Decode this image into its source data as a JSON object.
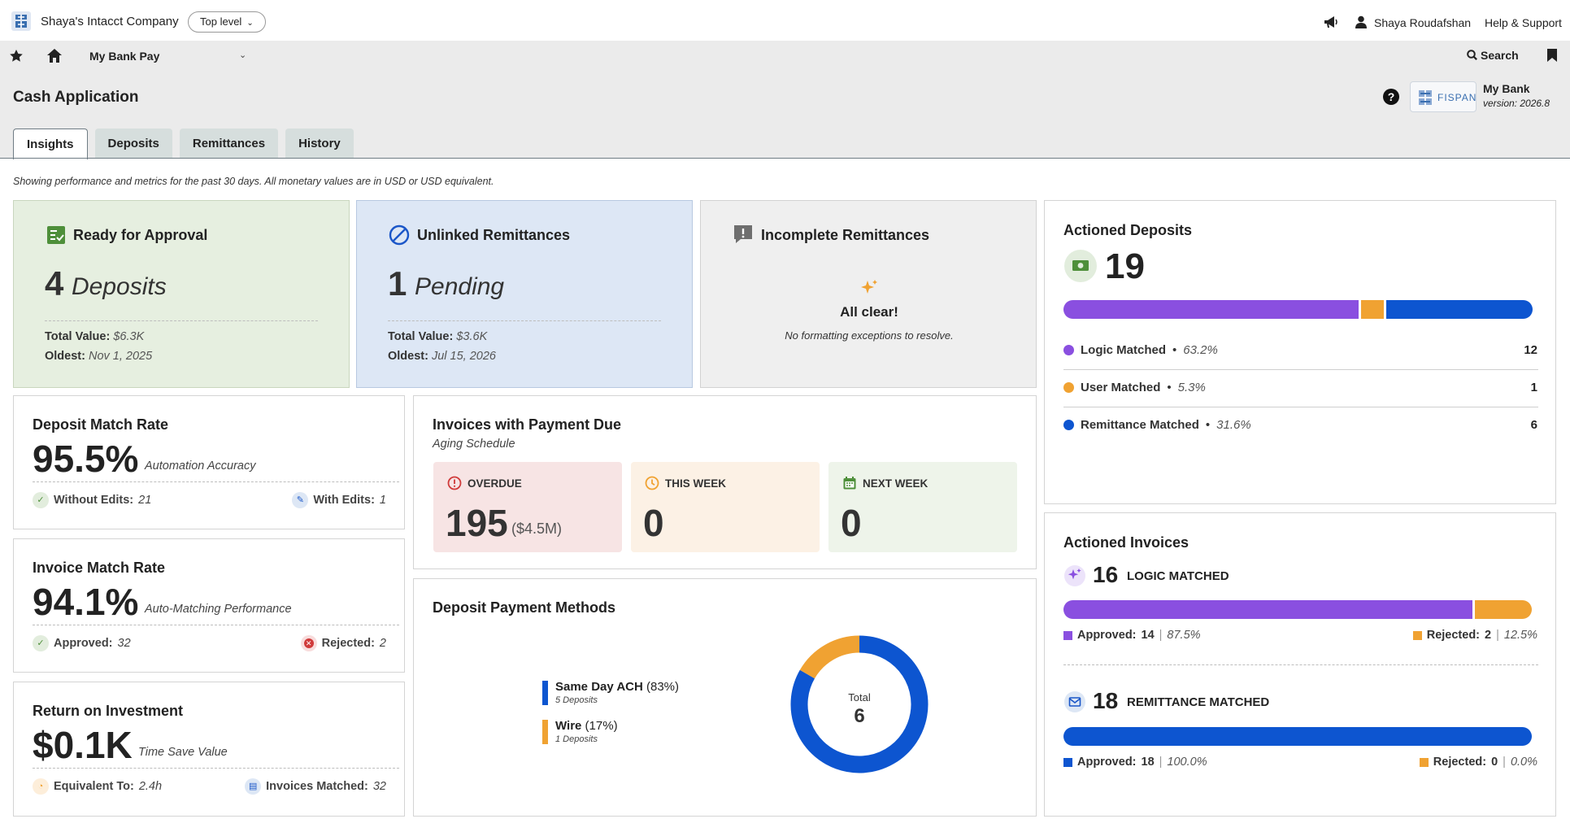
{
  "header": {
    "company": "Shaya's Intacct Company",
    "level": "Top level",
    "user": "Shaya Roudafshan",
    "help": "Help & Support"
  },
  "nav": {
    "title": "My Bank Pay",
    "search": "Search"
  },
  "page": {
    "title": "Cash Application",
    "bank_name": "My Bank",
    "version": "version: 2026.8",
    "logo_text": "FISPAN",
    "tabs": [
      "Insights",
      "Deposits",
      "Remittances",
      "History"
    ],
    "subtitle": "Showing performance and metrics for the past 30 days. All monetary values are in USD or USD equivalent."
  },
  "ready": {
    "title": "Ready for Approval",
    "count": "4",
    "unit": "Deposits",
    "total_label": "Total Value:",
    "total_value": "$6.3K",
    "oldest_label": "Oldest:",
    "oldest_value": "Nov 1, 2025"
  },
  "unlinked": {
    "title": "Unlinked Remittances",
    "count": "1",
    "unit": "Pending",
    "total_label": "Total Value:",
    "total_value": "$3.6K",
    "oldest_label": "Oldest:",
    "oldest_value": "Jul 15, 2026"
  },
  "incomplete": {
    "title": "Incomplete Remittances",
    "clear": "All clear!",
    "note": "No formatting exceptions to resolve."
  },
  "actioned_deposits": {
    "title": "Actioned Deposits",
    "total": "19",
    "colors": {
      "logic": "#8a4fe0",
      "user": "#f0a232",
      "remit": "#0d55d0"
    },
    "shares": [
      0.632,
      0.053,
      0.316
    ],
    "rows": [
      {
        "label": "Logic Matched",
        "pct": "63.2%",
        "count": "12"
      },
      {
        "label": "User Matched",
        "pct": "5.3%",
        "count": "1"
      },
      {
        "label": "Remittance Matched",
        "pct": "31.6%",
        "count": "6"
      }
    ]
  },
  "deposit_match": {
    "title": "Deposit Match Rate",
    "value": "95.5%",
    "sub": "Automation Accuracy",
    "left_label": "Without Edits:",
    "left_value": "21",
    "right_label": "With Edits:",
    "right_value": "1"
  },
  "invoice_match": {
    "title": "Invoice Match Rate",
    "value": "94.1%",
    "sub": "Auto-Matching Performance",
    "left_label": "Approved:",
    "left_value": "32",
    "right_label": "Rejected:",
    "right_value": "2"
  },
  "roi": {
    "title": "Return on Investment",
    "value": "$0.1K",
    "sub": "Time Save Value",
    "left_label": "Equivalent To:",
    "left_value": "2.4h",
    "right_label": "Invoices Matched:",
    "right_value": "32"
  },
  "invoices_due": {
    "title": "Invoices with Payment Due",
    "subtitle": "Aging Schedule",
    "overdue_label": "OVERDUE",
    "overdue_value": "195",
    "overdue_amount": "($4.5M)",
    "this_week_label": "THIS WEEK",
    "this_week_value": "0",
    "next_week_label": "NEXT WEEK",
    "next_week_value": "0"
  },
  "payment_methods": {
    "title": "Deposit Payment Methods",
    "items": [
      {
        "name": "Same Day ACH",
        "pct": "(83%)",
        "sub": "5 Deposits",
        "color": "#0d55d0"
      },
      {
        "name": "Wire",
        "pct": "(17%)",
        "sub": "1 Deposits",
        "color": "#f0a232"
      }
    ],
    "total_label": "Total",
    "total_value": "6"
  },
  "chart_data": {
    "type": "pie",
    "title": "Deposit Payment Methods",
    "categories": [
      "Same Day ACH",
      "Wire"
    ],
    "values": [
      5,
      1
    ],
    "colors": [
      "#0d55d0",
      "#f0a232"
    ]
  },
  "actioned_invoices": {
    "title": "Actioned Invoices",
    "logic_count": "16",
    "logic_label": "LOGIC MATCHED",
    "logic_shares": [
      0.875,
      0.125
    ],
    "logic_approved_label": "Approved:",
    "logic_approved": "14",
    "logic_approved_pct": "87.5%",
    "logic_rejected_label": "Rejected:",
    "logic_rejected": "2",
    "logic_rejected_pct": "12.5%",
    "remit_count": "18",
    "remit_label": "REMITTANCE MATCHED",
    "remit_shares": [
      1.0,
      0.0
    ],
    "remit_approved_label": "Approved:",
    "remit_approved": "18",
    "remit_approved_pct": "100.0%",
    "remit_rejected_label": "Rejected:",
    "remit_rejected": "0",
    "remit_rejected_pct": "0.0%"
  }
}
